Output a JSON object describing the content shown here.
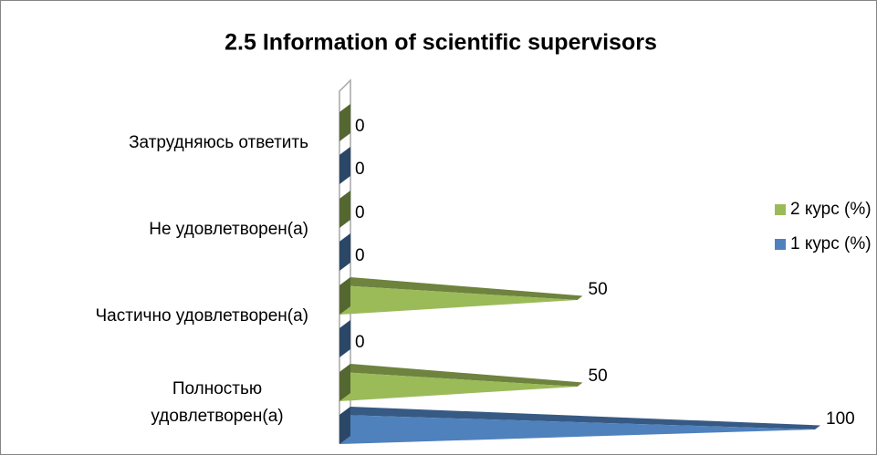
{
  "chart_data": {
    "type": "bar",
    "orientation": "horizontal",
    "shape": "cone",
    "title": "2.5 Information of scientific supervisors",
    "categories": [
      "Полностью удовлетворен(а)",
      "Частично удовлетворен(а)",
      "Не удовлетворен(а)",
      "Затрудняюсь ответить"
    ],
    "series": [
      {
        "name": "1 курс (%)",
        "color": "#4f81bd",
        "values": [
          100,
          0,
          0,
          0
        ]
      },
      {
        "name": "2 курс (%)",
        "color": "#9bbb59",
        "values": [
          50,
          50,
          0,
          0
        ]
      }
    ],
    "legend": "right"
  }
}
